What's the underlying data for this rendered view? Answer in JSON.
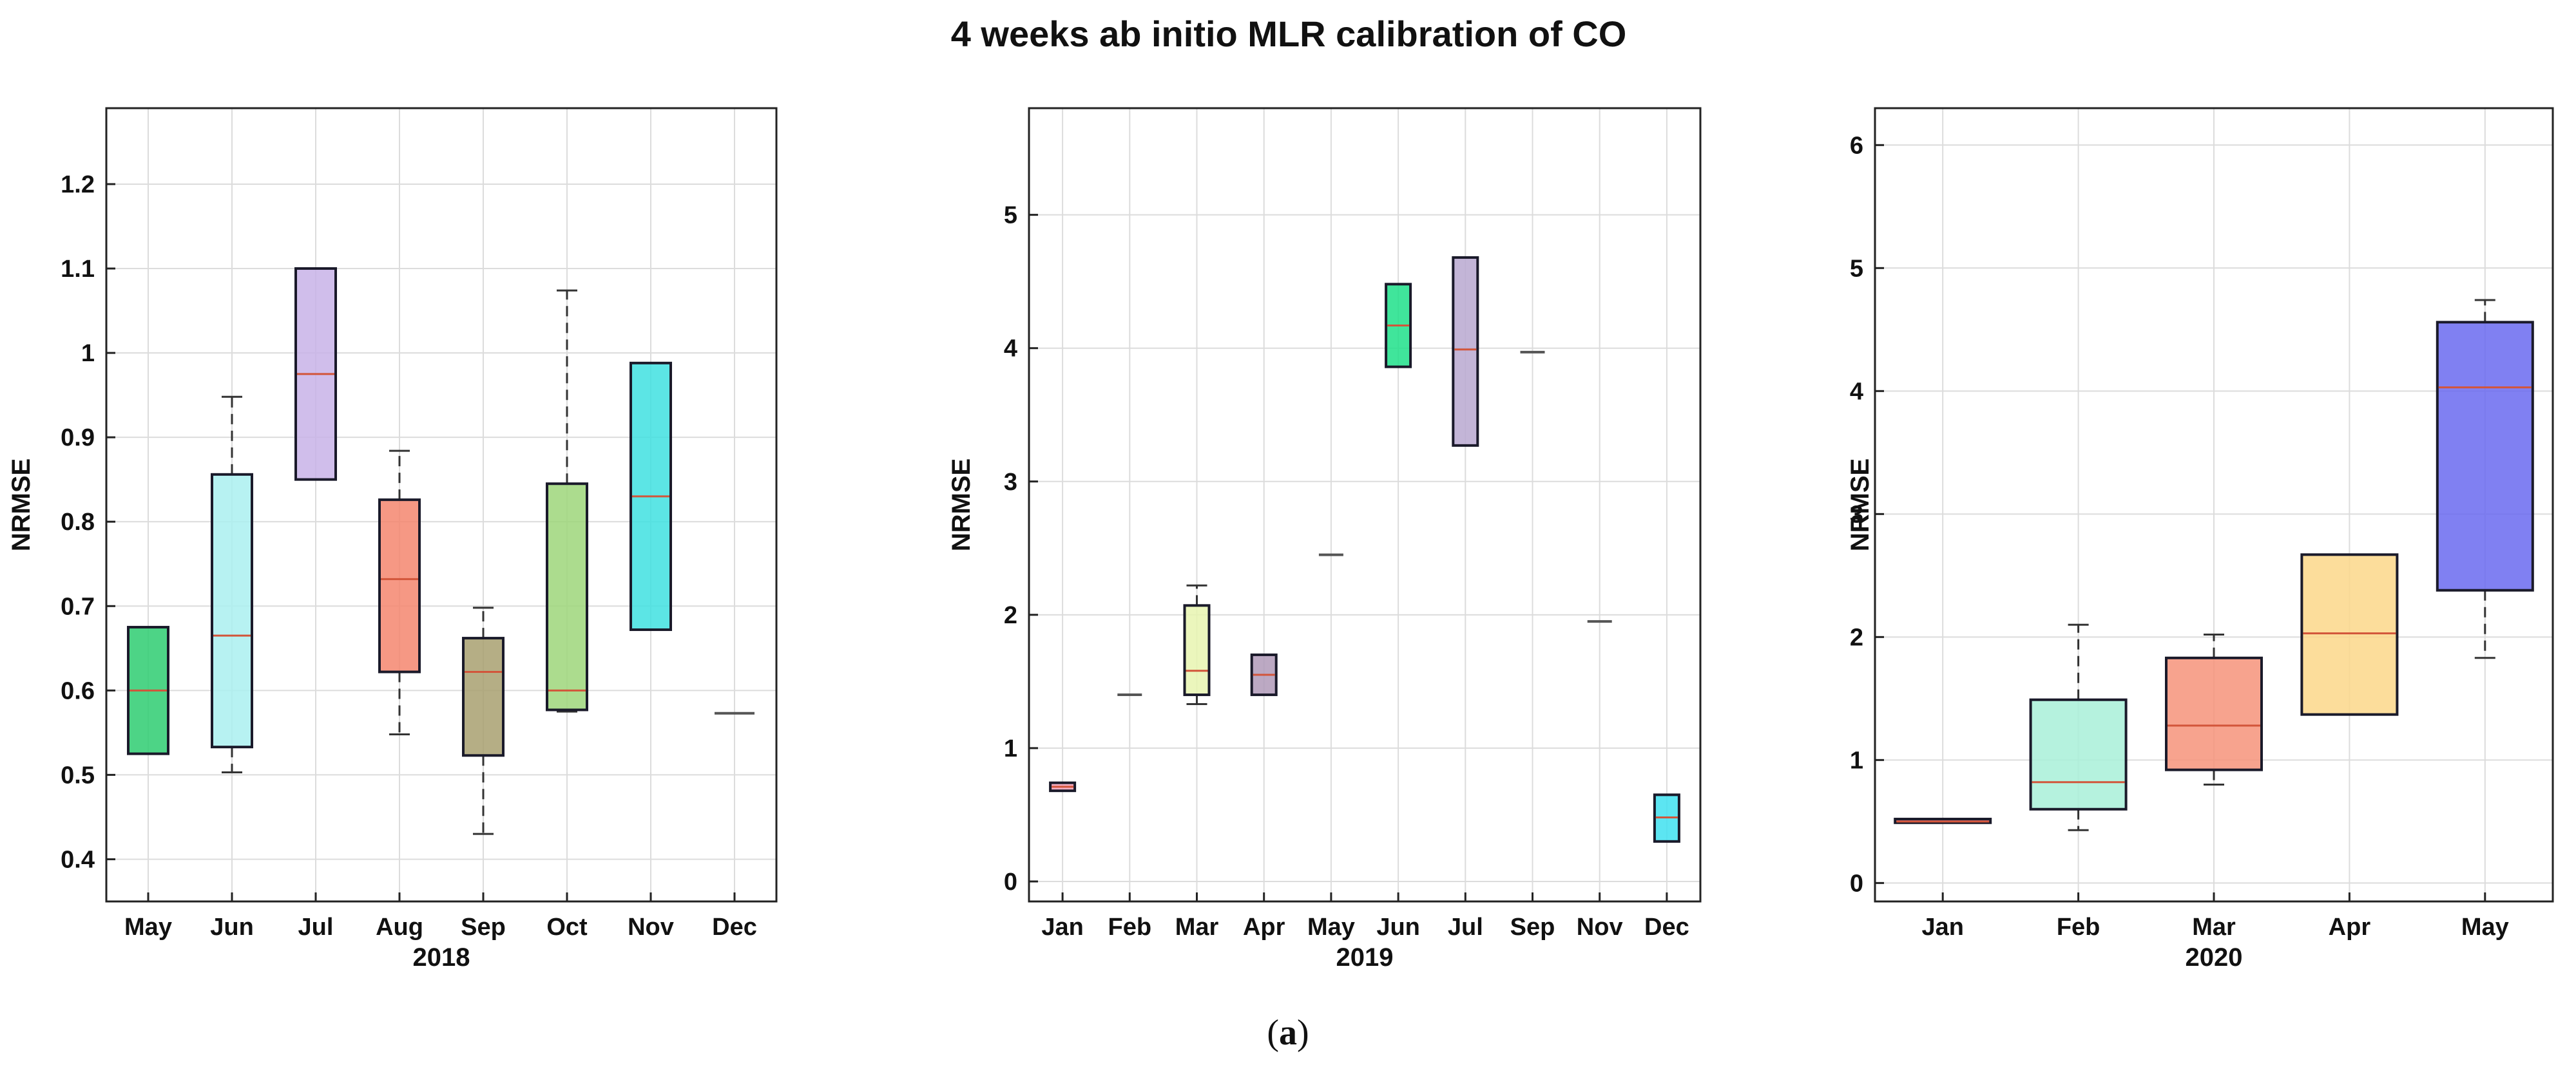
{
  "title": "4 weeks ab initio MLR calibration of CO",
  "caption": {
    "open": "(",
    "letter": "a",
    "close": ")"
  },
  "chart_data": [
    {
      "type": "box",
      "xlabel": "2018",
      "ylabel": "NRMSE",
      "ylim": [
        0.35,
        1.29
      ],
      "yticks": [
        0.4,
        0.5,
        0.6,
        0.7,
        0.8,
        0.9,
        1,
        1.1,
        1.2
      ],
      "ytick_labels": [
        "0.4",
        "0.5",
        "0.6",
        "0.7",
        "0.8",
        "0.9",
        "1",
        "1.1",
        "1.2"
      ],
      "grid": true,
      "categories": [
        "May",
        "Jun",
        "Jul",
        "Aug",
        "Sep",
        "Oct",
        "Nov",
        "Dec"
      ],
      "boxes": [
        {
          "label": "May",
          "min": 0.525,
          "q1": 0.525,
          "median": 0.6,
          "q3": 0.675,
          "max": 0.675,
          "color": "#2ecc71"
        },
        {
          "label": "Jun",
          "min": 0.503,
          "q1": 0.533,
          "median": 0.665,
          "q3": 0.856,
          "max": 0.948,
          "color": "#aaf0f0"
        },
        {
          "label": "Jul",
          "min": 0.85,
          "q1": 0.85,
          "median": 0.975,
          "q3": 1.1,
          "max": 1.1,
          "color": "#c8b3e8"
        },
        {
          "label": "Aug",
          "min": 0.548,
          "q1": 0.622,
          "median": 0.732,
          "q3": 0.826,
          "max": 0.884,
          "color": "#f4866e"
        },
        {
          "label": "Sep",
          "min": 0.43,
          "q1": 0.523,
          "median": 0.622,
          "q3": 0.662,
          "max": 0.698,
          "color": "#a8a070"
        },
        {
          "label": "Oct",
          "min": 0.575,
          "q1": 0.577,
          "median": 0.6,
          "q3": 0.845,
          "max": 1.074,
          "color": "#9ed67a"
        },
        {
          "label": "Nov",
          "min": 0.672,
          "q1": 0.672,
          "median": 0.83,
          "q3": 0.988,
          "max": 0.988,
          "color": "#40e0e0"
        },
        {
          "label": "Dec",
          "min": 0.573,
          "q1": 0.573,
          "median": 0.573,
          "q3": 0.573,
          "max": 0.573,
          "color": "#555555"
        }
      ]
    },
    {
      "type": "box",
      "xlabel": "2019",
      "ylabel": "NRMSE",
      "ylim": [
        -0.15,
        5.8
      ],
      "yticks": [
        0,
        1,
        2,
        3,
        4,
        5
      ],
      "ytick_labels": [
        "0",
        "1",
        "2",
        "3",
        "4",
        "5"
      ],
      "grid": true,
      "categories": [
        "Jan",
        "Feb",
        "Mar",
        "Apr",
        "May",
        "Jun",
        "Jul",
        "Sep",
        "Nov",
        "Dec"
      ],
      "boxes": [
        {
          "label": "Jan",
          "min": 0.68,
          "q1": 0.68,
          "median": 0.71,
          "q3": 0.74,
          "max": 0.74,
          "color": "#f2a0b8"
        },
        {
          "label": "Feb",
          "min": 1.4,
          "q1": 1.4,
          "median": 1.4,
          "q3": 1.4,
          "max": 1.4,
          "color": "#555555"
        },
        {
          "label": "Mar",
          "min": 1.33,
          "q1": 1.4,
          "median": 1.58,
          "q3": 2.07,
          "max": 2.22,
          "color": "#e8f5b0"
        },
        {
          "label": "Apr",
          "min": 1.4,
          "q1": 1.4,
          "median": 1.55,
          "q3": 1.7,
          "max": 1.7,
          "color": "#b09ab8"
        },
        {
          "label": "May",
          "min": 2.45,
          "q1": 2.45,
          "median": 2.45,
          "q3": 2.45,
          "max": 2.45,
          "color": "#555555"
        },
        {
          "label": "Jun",
          "min": 3.86,
          "q1": 3.86,
          "median": 4.17,
          "q3": 4.48,
          "max": 4.48,
          "color": "#1ee08a"
        },
        {
          "label": "Jul",
          "min": 3.27,
          "q1": 3.27,
          "median": 3.99,
          "q3": 4.68,
          "max": 4.68,
          "color": "#b8a8d0"
        },
        {
          "label": "Sep",
          "min": 3.97,
          "q1": 3.97,
          "median": 3.97,
          "q3": 3.97,
          "max": 3.97,
          "color": "#555555"
        },
        {
          "label": "Nov",
          "min": 1.95,
          "q1": 1.95,
          "median": 1.95,
          "q3": 1.95,
          "max": 1.95,
          "color": "#555555"
        },
        {
          "label": "Dec",
          "min": 0.3,
          "q1": 0.3,
          "median": 0.48,
          "q3": 0.65,
          "max": 0.65,
          "color": "#40e0f0"
        }
      ]
    },
    {
      "type": "box",
      "xlabel": "2020",
      "ylabel": "NRMSE",
      "ylim": [
        -0.15,
        6.3
      ],
      "yticks": [
        0,
        1,
        2,
        3,
        4,
        5,
        6
      ],
      "ytick_labels": [
        "0",
        "1",
        "2",
        "3",
        "4",
        "5",
        "6"
      ],
      "grid": true,
      "categories": [
        "Jan",
        "Feb",
        "Mar",
        "Apr",
        "May"
      ],
      "boxes": [
        {
          "label": "Jan",
          "min": 0.49,
          "q1": 0.49,
          "median": 0.5,
          "q3": 0.52,
          "max": 0.52,
          "color": "#d070a0"
        },
        {
          "label": "Feb",
          "min": 0.43,
          "q1": 0.6,
          "median": 0.82,
          "q3": 1.49,
          "max": 2.1,
          "color": "#a8f0d8"
        },
        {
          "label": "Mar",
          "min": 0.8,
          "q1": 0.92,
          "median": 1.28,
          "q3": 1.83,
          "max": 2.02,
          "color": "#f6937a"
        },
        {
          "label": "Apr",
          "min": 1.37,
          "q1": 1.37,
          "median": 2.03,
          "q3": 2.67,
          "max": 2.67,
          "color": "#fcd78a"
        },
        {
          "label": "May",
          "min": 1.83,
          "q1": 2.38,
          "median": 4.03,
          "q3": 4.56,
          "max": 4.74,
          "color": "#6a6af0"
        }
      ]
    }
  ]
}
